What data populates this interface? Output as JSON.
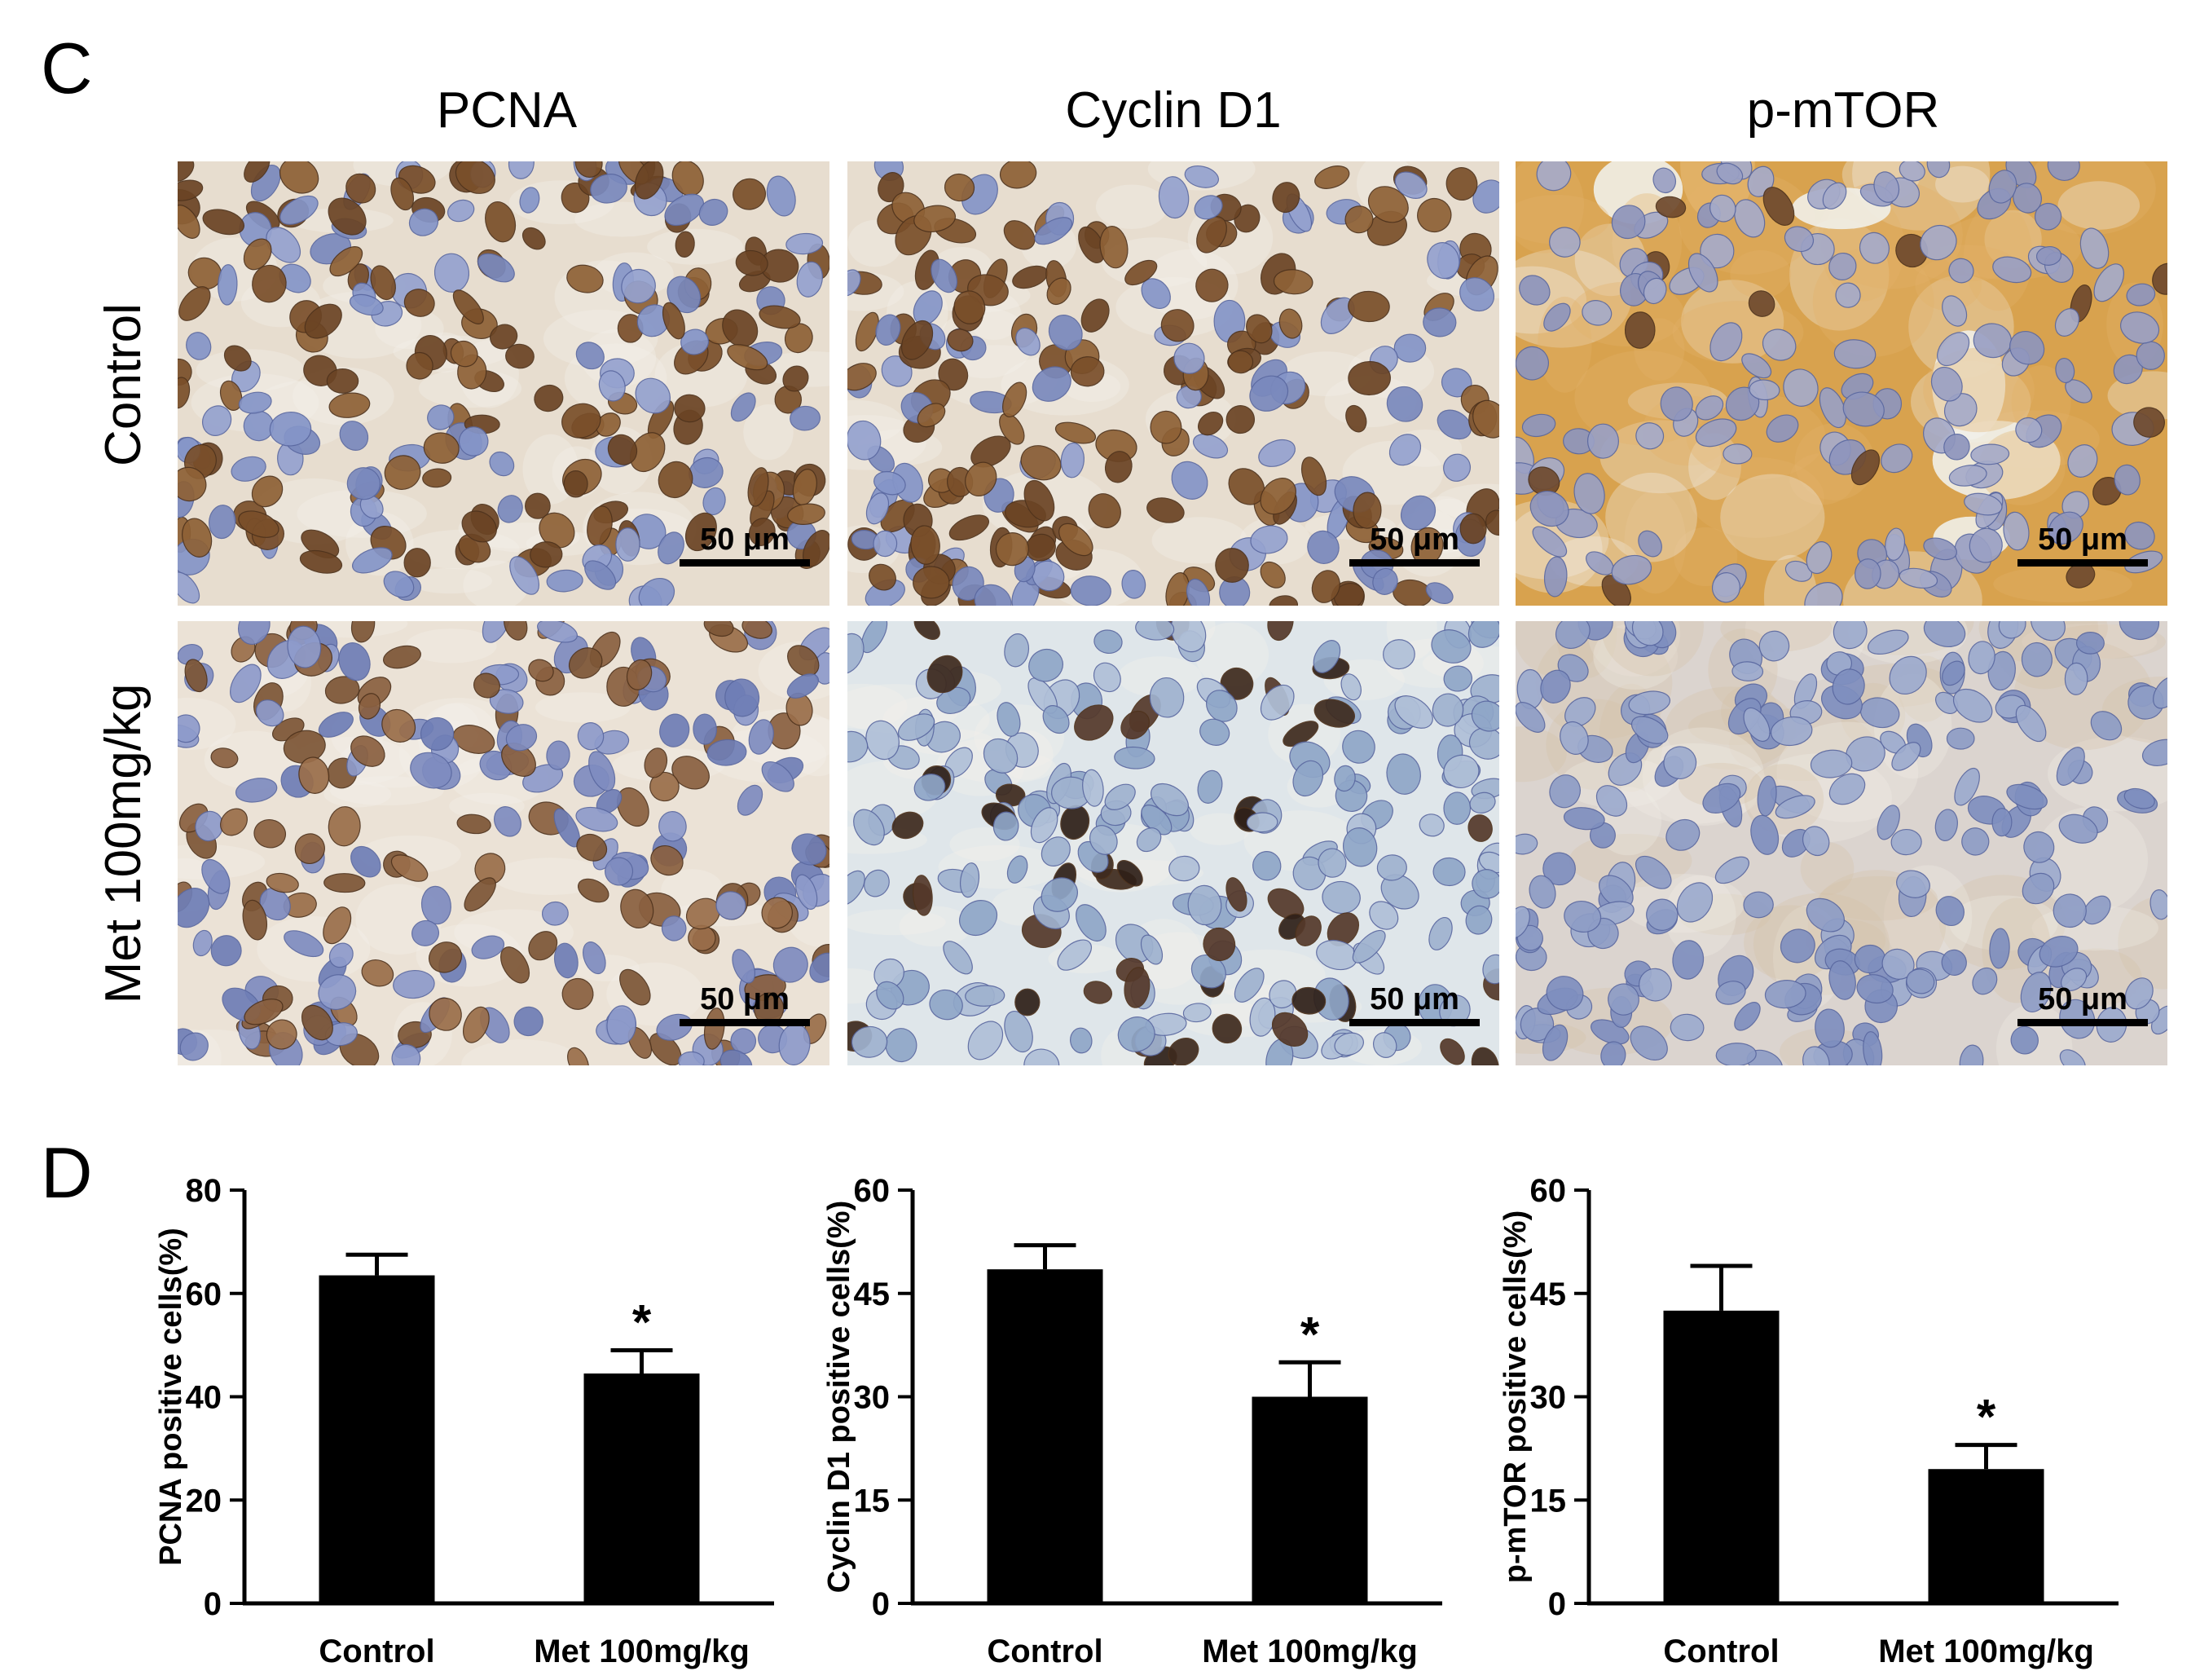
{
  "panel_c": {
    "letter": "C",
    "columns": [
      "PCNA",
      "Cyclin D1",
      "p-mTOR"
    ],
    "rows": [
      "Control",
      "Met 100mg/kg"
    ],
    "scale_bar_label": "50 μm",
    "tiles": [
      {
        "row": "Control",
        "column": "PCNA",
        "staining": "nuclear-brown"
      },
      {
        "row": "Control",
        "column": "Cyclin D1",
        "staining": "nuclear-brown"
      },
      {
        "row": "Control",
        "column": "p-mTOR",
        "staining": "cytoplasmic-strong"
      },
      {
        "row": "Met 100mg/kg",
        "column": "PCNA",
        "staining": "nuclear-brown-moderate"
      },
      {
        "row": "Met 100mg/kg",
        "column": "Cyclin D1",
        "staining": "nuclear-dark-sparse"
      },
      {
        "row": "Met 100mg/kg",
        "column": "p-mTOR",
        "staining": "cytoplasmic-weak"
      }
    ],
    "colors": {
      "hematoxylin_blue": "#7d8fc4",
      "dab_brown": "#8a5a2c",
      "dab_cytoplasm": "#d9a04e"
    }
  },
  "panel_d": {
    "letter": "D",
    "bar_color": "#000000"
  },
  "chart_data": [
    {
      "type": "bar",
      "categories": [
        "Control",
        "Met 100mg/kg"
      ],
      "values": [
        63.5,
        44.5
      ],
      "errors": [
        4.0,
        4.5
      ],
      "significance": [
        "",
        "*"
      ],
      "ylabel": "PCNA positive cells(%)",
      "xlabel": "",
      "ylim": [
        0,
        80
      ],
      "yticks": [
        0,
        20,
        40,
        60,
        80
      ],
      "grid": false
    },
    {
      "type": "bar",
      "categories": [
        "Control",
        "Met 100mg/kg"
      ],
      "values": [
        48.5,
        30.0
      ],
      "errors": [
        3.5,
        5.0
      ],
      "significance": [
        "",
        "*"
      ],
      "ylabel": "Cyclin D1 positive cells(%)",
      "xlabel": "",
      "ylim": [
        0,
        60
      ],
      "yticks": [
        0,
        15,
        30,
        45,
        60
      ],
      "grid": false
    },
    {
      "type": "bar",
      "categories": [
        "Control",
        "Met 100mg/kg"
      ],
      "values": [
        42.5,
        19.5
      ],
      "errors": [
        6.5,
        3.5
      ],
      "significance": [
        "",
        "*"
      ],
      "ylabel": "p-mTOR positive cells(%)",
      "xlabel": "",
      "ylim": [
        0,
        60
      ],
      "yticks": [
        0,
        15,
        30,
        45,
        60
      ],
      "grid": false
    }
  ]
}
